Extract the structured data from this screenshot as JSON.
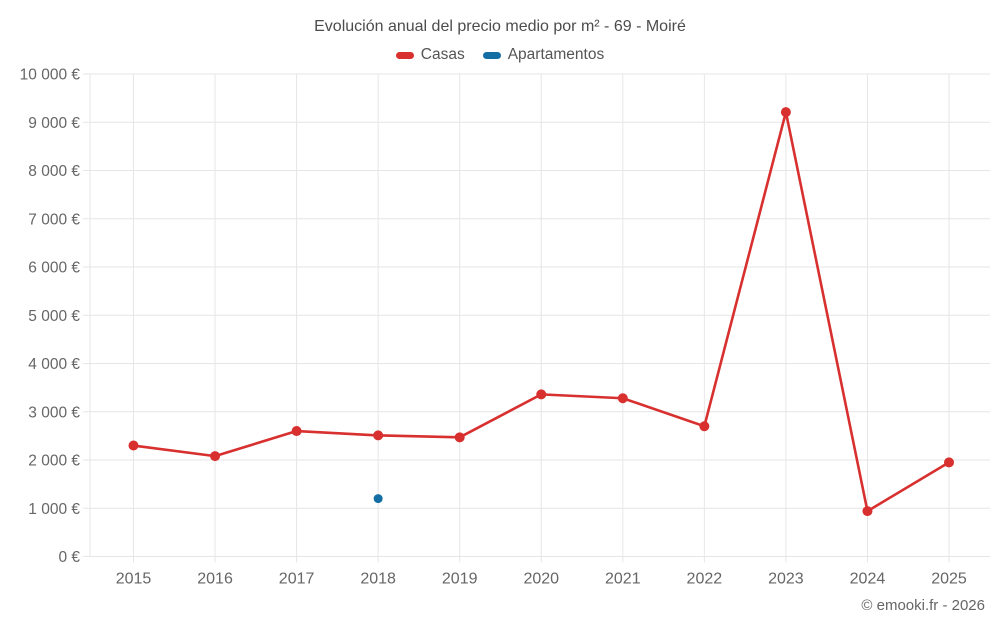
{
  "title": "Evolución anual del precio medio por m² - 69 - Moiré",
  "footer": "© emooki.fr - 2026",
  "colors": {
    "casas": "#d7302f",
    "apartamentos": "#136fa3",
    "grid": "#e6e6e6",
    "axis_text": "#666666",
    "title_text": "#4c4c4c"
  },
  "chart_data": {
    "type": "line",
    "title": "Evolución anual del precio medio por m² - 69 - Moiré",
    "xlabel": "",
    "ylabel": "",
    "categories": [
      "2015",
      "2016",
      "2017",
      "2018",
      "2019",
      "2020",
      "2021",
      "2022",
      "2023",
      "2024",
      "2025"
    ],
    "series": [
      {
        "name": "Casas",
        "color": "#d7302f",
        "values": [
          2300,
          2080,
          2600,
          2510,
          2470,
          3360,
          3280,
          2700,
          9210,
          940,
          1950
        ]
      },
      {
        "name": "Apartamentos",
        "color": "#136fa3",
        "values": [
          null,
          null,
          null,
          1200,
          null,
          null,
          null,
          null,
          null,
          null,
          null
        ]
      }
    ],
    "ylim": [
      0,
      10000
    ],
    "ytick_step": 1000,
    "ytick_suffix": " €",
    "grid": true,
    "legend_position": "top"
  }
}
